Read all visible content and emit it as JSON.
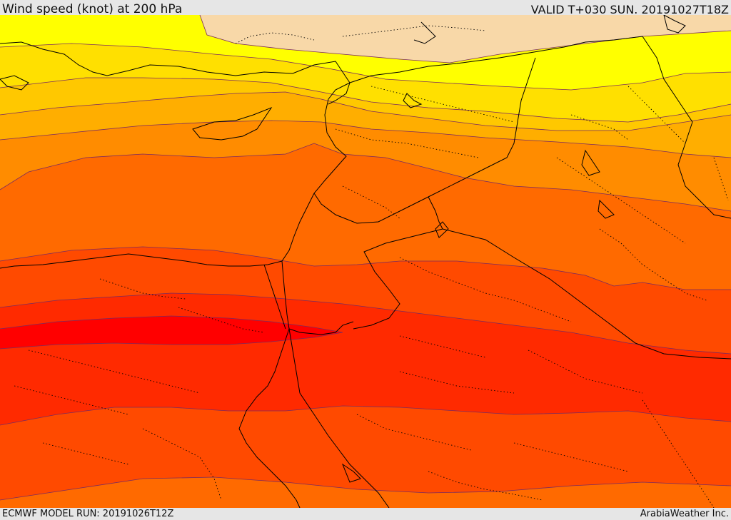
{
  "header": {
    "title": "Wind speed (knot) at 200 hPa",
    "valid": "VALID T+030 SUN. 20191027T18Z"
  },
  "footer": {
    "model_run": "ECMWF MODEL RUN: 20191026T12Z",
    "credit": "ArabiaWeather Inc."
  },
  "map": {
    "variable": "wind-speed",
    "units": "knot",
    "level": "200 hPa",
    "colors": {
      "band_1": "#f8d8a8",
      "band_2": "#ffff00",
      "band_3": "#ffe000",
      "band_4": "#ffc800",
      "band_5": "#ffae00",
      "band_6": "#ff8c00",
      "band_7": "#ff6a00",
      "band_8": "#ff4a00",
      "band_9": "#ff2a00",
      "band_10": "#ff0000",
      "contour_line": "#7a2a60",
      "coastline": "#000000",
      "border": "#000000"
    }
  }
}
